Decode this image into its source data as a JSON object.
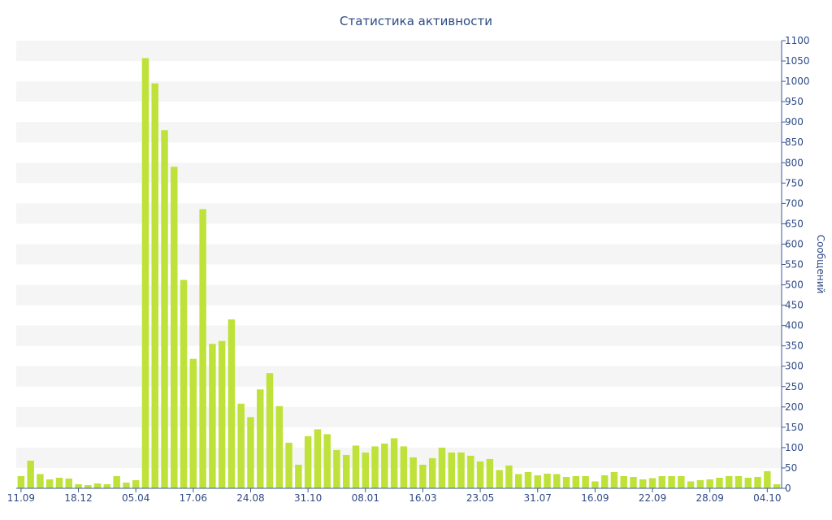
{
  "chart_data": {
    "type": "bar",
    "title": "Статистика активности",
    "ylabel": "Сообщений",
    "xlabel": "",
    "ylim": [
      0,
      1100
    ],
    "ytick_step": 50,
    "grid": "alternating horizontal bands",
    "bar_color": "#bfe23a",
    "text_color": "#2e4a86",
    "axis_color": "#3b5998",
    "x_tick_labels": [
      {
        "index": 0,
        "label": "11.09"
      },
      {
        "index": 6,
        "label": "18.12"
      },
      {
        "index": 12,
        "label": "05.04"
      },
      {
        "index": 18,
        "label": "17.06"
      },
      {
        "index": 24,
        "label": "24.08"
      },
      {
        "index": 30,
        "label": "31.10"
      },
      {
        "index": 36,
        "label": "08.01"
      },
      {
        "index": 42,
        "label": "16.03"
      },
      {
        "index": 48,
        "label": "23.05"
      },
      {
        "index": 54,
        "label": "31.07"
      },
      {
        "index": 60,
        "label": "16.09"
      },
      {
        "index": 66,
        "label": "22.09"
      },
      {
        "index": 72,
        "label": "28.09"
      },
      {
        "index": 78,
        "label": "04.10"
      }
    ],
    "values": [
      30,
      68,
      35,
      22,
      26,
      24,
      10,
      8,
      12,
      10,
      30,
      14,
      20,
      1057,
      995,
      880,
      790,
      512,
      318,
      686,
      355,
      362,
      415,
      208,
      175,
      243,
      283,
      202,
      112,
      58,
      128,
      145,
      133,
      94,
      82,
      105,
      88,
      103,
      110,
      123,
      103,
      76,
      58,
      74,
      100,
      88,
      88,
      80,
      66,
      72,
      45,
      56,
      35,
      40,
      32,
      36,
      35,
      28,
      30,
      30,
      17,
      32,
      40,
      30,
      28,
      22,
      25,
      30,
      30,
      30,
      17,
      20,
      22,
      26,
      30,
      30,
      26,
      28,
      42,
      10
    ]
  }
}
